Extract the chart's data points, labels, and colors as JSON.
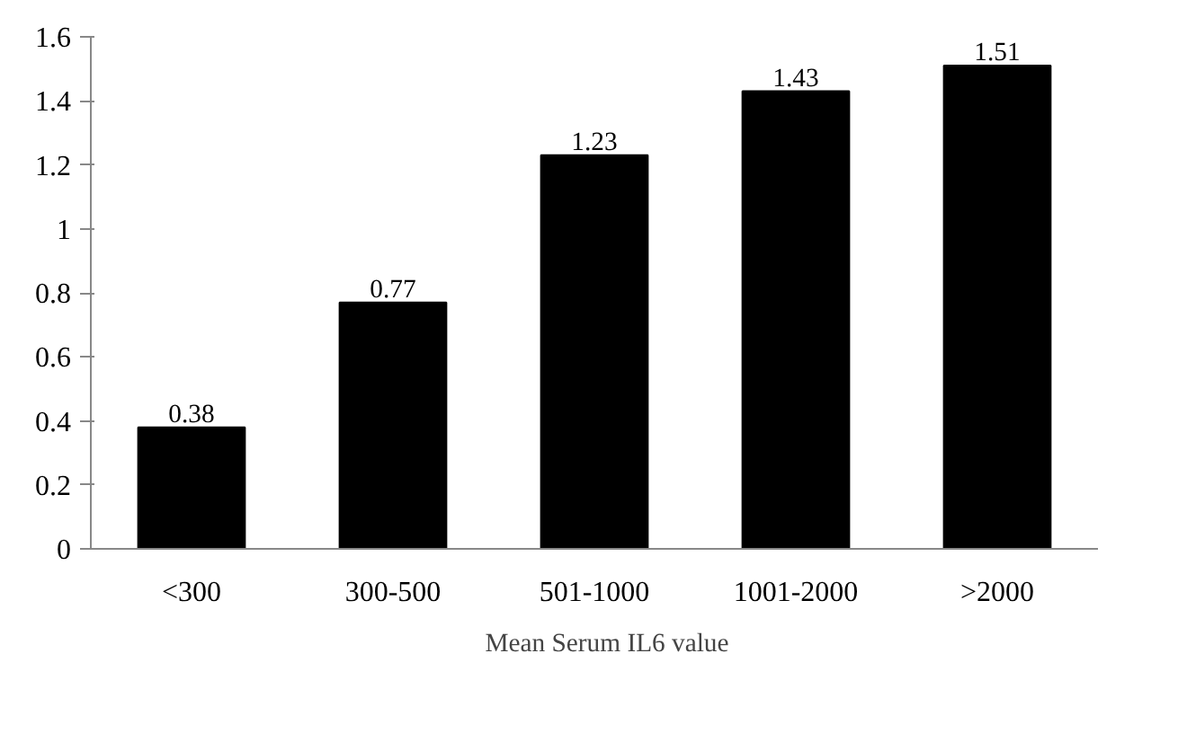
{
  "chart_data": {
    "type": "bar",
    "categories": [
      "<300",
      "300-500",
      "501-1000",
      "1001-2000",
      ">2000"
    ],
    "series": [
      {
        "name": "Mean Serum IL6 value",
        "color": "#000000",
        "values": [
          0.38,
          0.77,
          1.23,
          1.43,
          1.51
        ]
      }
    ],
    "ylim": [
      0,
      1.6
    ],
    "yticks": [
      0,
      0.2,
      0.4,
      0.6,
      0.8,
      1,
      1.2,
      1.4,
      1.6
    ],
    "grid": false,
    "legend": "bottom",
    "data_labels": true
  }
}
